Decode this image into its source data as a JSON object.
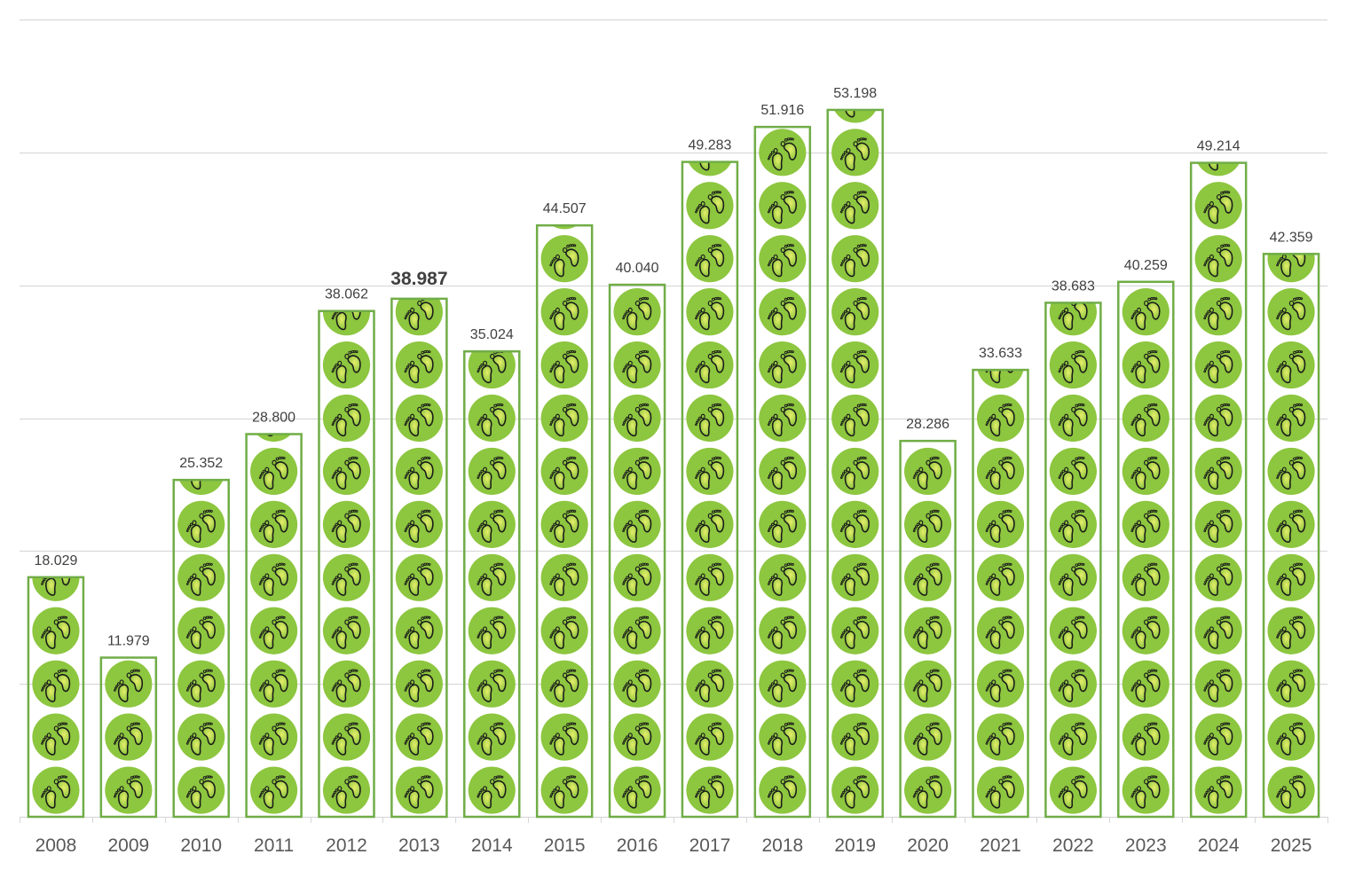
{
  "chart_data": {
    "type": "bar",
    "title": "",
    "xlabel": "",
    "ylabel": "",
    "ylim": [
      0,
      60
    ],
    "y_gridlines": [
      10,
      20,
      30,
      40,
      50,
      60
    ],
    "grid": true,
    "legend": "none",
    "bar_style": "pictograph",
    "icon": "footprints-icon",
    "icon_unit_value": 4,
    "categories": [
      "2008",
      "2009",
      "2010",
      "2011",
      "2012",
      "2013",
      "2014",
      "2015",
      "2016",
      "2017",
      "2018",
      "2019",
      "2020",
      "2021",
      "2022",
      "2023",
      "2024",
      "2025"
    ],
    "values": [
      18.029,
      11.979,
      25.352,
      28.8,
      38.062,
      38.987,
      35.024,
      44.507,
      40.04,
      49.283,
      51.916,
      53.198,
      28.286,
      33.633,
      38.683,
      40.259,
      49.214,
      42.359
    ],
    "data_labels": [
      "18.029",
      "11.979",
      "25.352",
      "28.800",
      "38.062",
      "38.987",
      "35.024",
      "44.507",
      "40.040",
      "49.283",
      "51.916",
      "53.198",
      "28.286",
      "33.633",
      "38.683",
      "40.259",
      "49.214",
      "42.359"
    ],
    "highlighted_category": "2013",
    "colors": {
      "bar_border": "#70ad47",
      "icon_fill": "#8dc63f",
      "icon_highlight": "#d4e157",
      "footprint_stroke": "#1a1a1a",
      "gridline": "#d9d9d9",
      "axis": "#d9d9d9"
    }
  }
}
